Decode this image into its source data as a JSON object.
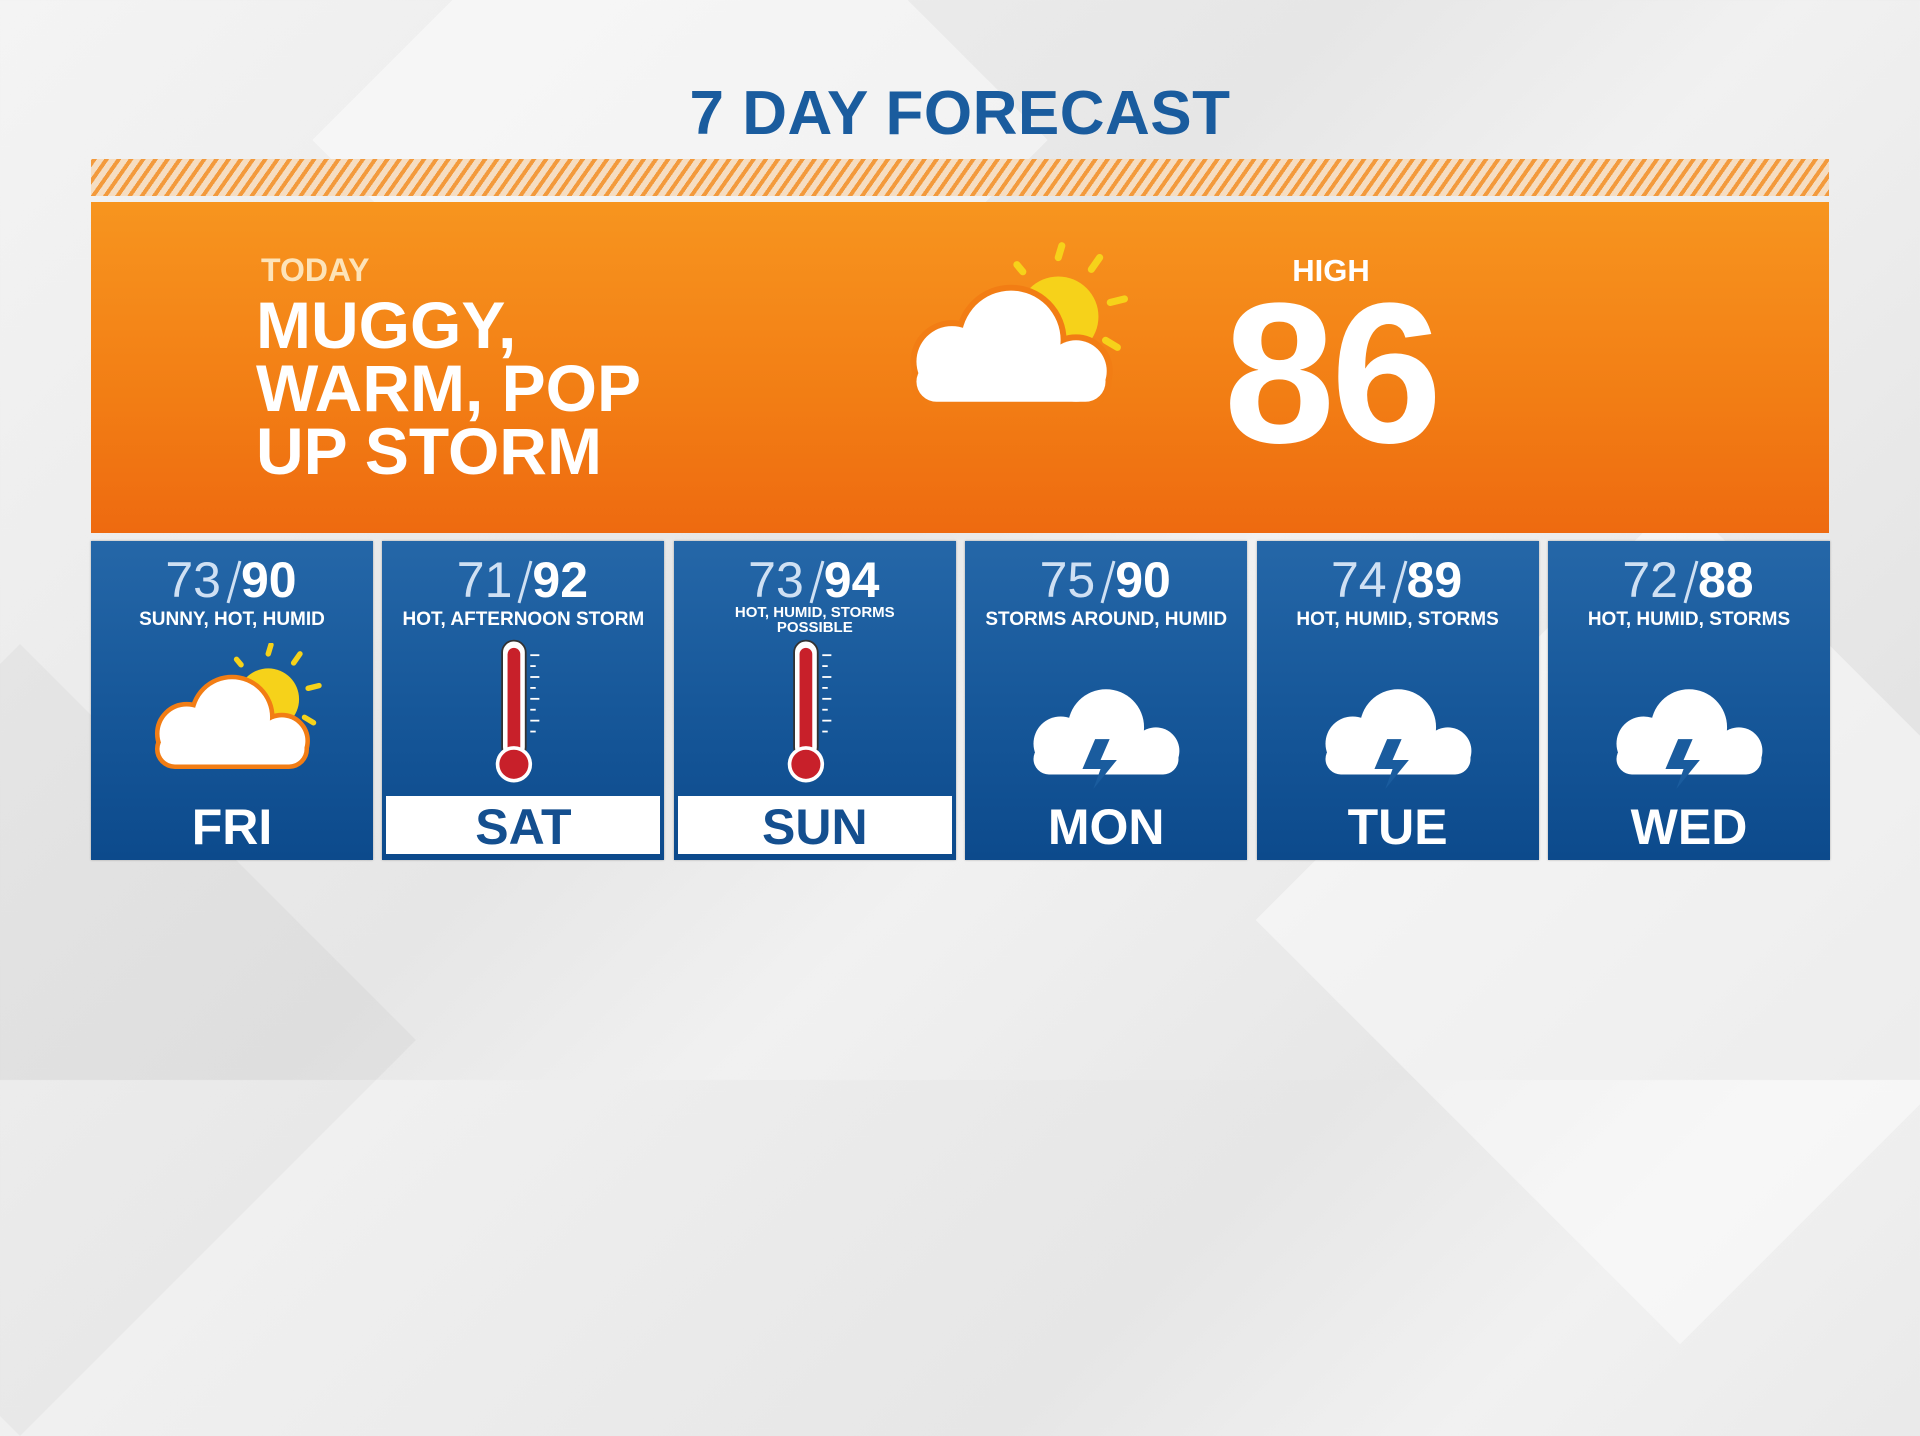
{
  "header": {
    "title": "7 DAY FORECAST"
  },
  "today": {
    "label": "TODAY",
    "summary": [
      "MUGGY,",
      "WARM, POP",
      "UP STORM"
    ],
    "high_label": "HIGH",
    "high": 86
  },
  "days": [
    {
      "low": 73,
      "high": 90,
      "description": "SUNNY, HOT, HUMID",
      "day": "FRI"
    },
    {
      "low": 71,
      "high": 92,
      "description": "HOT, AFTERNOON STORM",
      "day": "SAT"
    },
    {
      "low": 73,
      "high": 94,
      "description": "HOT, HUMID, STORMS POSSIBLE",
      "day": "SUN"
    },
    {
      "low": 75,
      "high": 90,
      "description": "STORMS AROUND, HUMID",
      "day": "MON"
    },
    {
      "low": 74,
      "high": 89,
      "description": "HOT, HUMID, STORMS",
      "day": "TUE"
    },
    {
      "low": 72,
      "high": 88,
      "description": "HOT, HUMID, STORMS",
      "day": "WED"
    }
  ]
}
